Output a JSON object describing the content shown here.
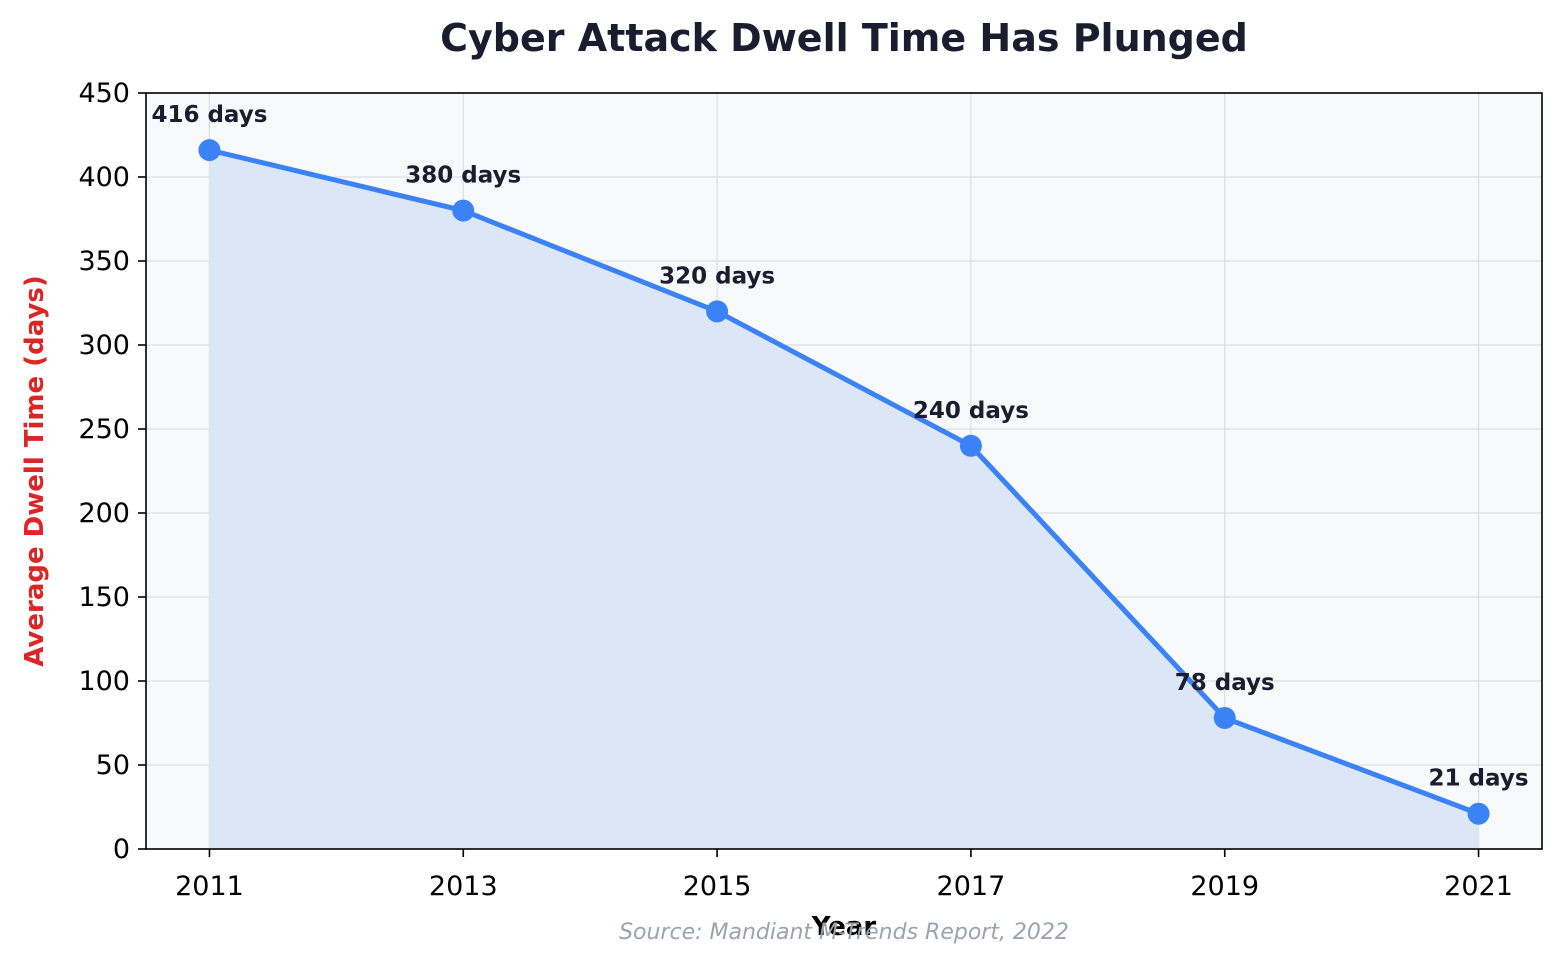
{
  "chart_data": {
    "type": "line",
    "title": "Cyber Attack Dwell Time Has Plunged",
    "xlabel": "Year",
    "ylabel": "Average Dwell Time (days)",
    "source": "Source: Mandiant M-Trends Report, 2022",
    "x": [
      2011,
      2013,
      2015,
      2017,
      2019,
      2021
    ],
    "xlim": [
      2010.5,
      2021.5
    ],
    "ylim": [
      0,
      450
    ],
    "xticks": [
      "2011",
      "2013",
      "2015",
      "2017",
      "2019",
      "2021"
    ],
    "yticks": [
      "0",
      "50",
      "100",
      "150",
      "200",
      "250",
      "300",
      "350",
      "400",
      "450"
    ],
    "grid": true,
    "area_fill": true,
    "series": [
      {
        "values": [
          416,
          380,
          320,
          240,
          78,
          21
        ],
        "labels": [
          "416 days",
          "380 days",
          "320 days",
          "240 days",
          "78 days",
          "21 days"
        ]
      }
    ],
    "colors": {
      "line": "#3b82f6",
      "fill": "#dbe6f7",
      "plot_bg": "#f8f9fb",
      "title": "#1c1c2e",
      "ylabel": "#dc2626",
      "data_label": "#1c1c2e",
      "source": "#9ca3af",
      "grid": "#d9dde3"
    }
  }
}
